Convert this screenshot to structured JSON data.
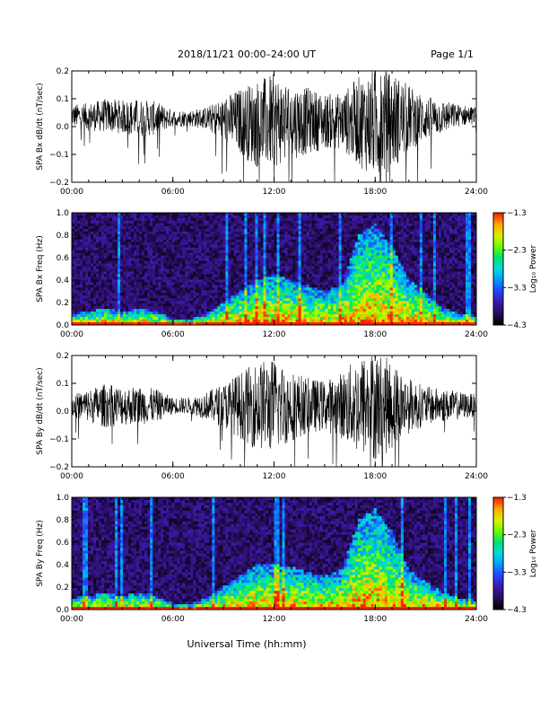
{
  "header": {
    "title": "2018/11/21   00:00–24:00 UT",
    "page": "Page 1/1"
  },
  "footer": {
    "xlabel": "Universal Time (hh:mm)"
  },
  "colors": {
    "trace": "#000000",
    "background": "#ffffff",
    "colormap": [
      "#000000",
      "#2a0d5e",
      "#3a1aa8",
      "#2244ff",
      "#0099ff",
      "#00dddd",
      "#00e070",
      "#66ff00",
      "#ddee00",
      "#ffaa00",
      "#ff2200"
    ]
  },
  "chart_data": [
    {
      "type": "line",
      "ylabel": "SPA Bx dB/dt (nT/sec)",
      "xlim": [
        0,
        24
      ],
      "ylim": [
        -0.2,
        0.2
      ],
      "x_ticks": [
        "00:00",
        "06:00",
        "12:00",
        "18:00",
        "24:00"
      ],
      "y_ticks": [
        "0.2",
        "0.1",
        "0.0",
        "−0.1",
        "−0.2"
      ],
      "series": [
        {
          "envelope_hours": [
            0,
            1,
            2,
            3,
            4,
            5,
            6,
            7,
            8,
            9,
            10,
            11,
            12,
            13,
            14,
            15,
            16,
            17,
            18,
            19,
            20,
            21,
            22,
            23,
            24
          ],
          "center": [
            0.04,
            0.035,
            0.04,
            0.035,
            0.03,
            0.03,
            0.03,
            0.03,
            0.03,
            0.025,
            0.02,
            0.01,
            0.02,
            0.02,
            0.02,
            0.02,
            0.02,
            0.02,
            0.01,
            0.02,
            0.03,
            0.03,
            0.035,
            0.04,
            0.04
          ],
          "amplitude": [
            0.04,
            0.05,
            0.06,
            0.06,
            0.07,
            0.06,
            0.03,
            0.03,
            0.04,
            0.08,
            0.12,
            0.16,
            0.17,
            0.14,
            0.12,
            0.1,
            0.1,
            0.16,
            0.2,
            0.18,
            0.12,
            0.08,
            0.06,
            0.04,
            0.03
          ]
        }
      ]
    },
    {
      "type": "heatmap",
      "ylabel": "SPA Bx Freq (Hz)",
      "colorbar_label": "Log₁₀ Power",
      "xlim": [
        0,
        24
      ],
      "ylim": [
        0.0,
        1.0
      ],
      "x_ticks": [
        "00:00",
        "06:00",
        "12:00",
        "18:00",
        "24:00"
      ],
      "y_ticks": [
        "1.0",
        "0.8",
        "0.6",
        "0.4",
        "0.2",
        "0.0"
      ],
      "colorbar_ticks": [
        "−1.3",
        "−2.3",
        "−3.3",
        "−4.3"
      ],
      "color_range": [
        -4.3,
        -1.3
      ],
      "activity_hours": [
        0,
        1,
        2,
        3,
        4,
        5,
        6,
        7,
        8,
        9,
        10,
        11,
        12,
        13,
        14,
        15,
        16,
        17,
        18,
        19,
        20,
        21,
        22,
        23,
        24
      ],
      "activity_top_freq_hz": [
        0.1,
        0.12,
        0.15,
        0.12,
        0.15,
        0.12,
        0.05,
        0.05,
        0.1,
        0.2,
        0.3,
        0.4,
        0.45,
        0.4,
        0.35,
        0.3,
        0.35,
        0.8,
        0.9,
        0.7,
        0.4,
        0.3,
        0.15,
        0.1,
        0.08
      ]
    },
    {
      "type": "line",
      "ylabel": "SPA By dB/dt (nT/sec)",
      "xlim": [
        0,
        24
      ],
      "ylim": [
        -0.2,
        0.2
      ],
      "x_ticks": [
        "00:00",
        "06:00",
        "12:00",
        "18:00",
        "24:00"
      ],
      "y_ticks": [
        "0.2",
        "0.1",
        "0.0",
        "−0.1",
        "−0.2"
      ],
      "series": [
        {
          "envelope_hours": [
            0,
            1,
            2,
            3,
            4,
            5,
            6,
            7,
            8,
            9,
            10,
            11,
            12,
            13,
            14,
            15,
            16,
            17,
            18,
            19,
            20,
            21,
            22,
            23,
            24
          ],
          "center": [
            0.02,
            0.02,
            0.02,
            0.02,
            0.02,
            0.02,
            0.02,
            0.02,
            0.02,
            0.02,
            0.02,
            0.02,
            0.02,
            0.02,
            0.02,
            0.02,
            0.02,
            0.02,
            0.02,
            0.02,
            0.02,
            0.02,
            0.02,
            0.02,
            0.02
          ],
          "amplitude": [
            0.04,
            0.06,
            0.08,
            0.07,
            0.07,
            0.06,
            0.03,
            0.03,
            0.05,
            0.08,
            0.12,
            0.16,
            0.17,
            0.13,
            0.1,
            0.09,
            0.12,
            0.18,
            0.2,
            0.16,
            0.1,
            0.07,
            0.06,
            0.05,
            0.04
          ]
        }
      ]
    },
    {
      "type": "heatmap",
      "ylabel": "SPA By Freq (Hz)",
      "colorbar_label": "Log₁₀ Power",
      "xlim": [
        0,
        24
      ],
      "ylim": [
        0.0,
        1.0
      ],
      "x_ticks": [
        "00:00",
        "06:00",
        "12:00",
        "18:00",
        "24:00"
      ],
      "y_ticks": [
        "1.0",
        "0.8",
        "0.6",
        "0.4",
        "0.2",
        "0.0"
      ],
      "colorbar_ticks": [
        "−1.3",
        "−2.3",
        "−3.3",
        "−4.3"
      ],
      "color_range": [
        -4.3,
        -1.3
      ],
      "activity_hours": [
        0,
        1,
        2,
        3,
        4,
        5,
        6,
        7,
        8,
        9,
        10,
        11,
        12,
        13,
        14,
        15,
        16,
        17,
        18,
        19,
        20,
        21,
        22,
        23,
        24
      ],
      "activity_top_freq_hz": [
        0.1,
        0.12,
        0.15,
        0.12,
        0.15,
        0.12,
        0.05,
        0.05,
        0.1,
        0.2,
        0.3,
        0.4,
        0.4,
        0.38,
        0.33,
        0.3,
        0.35,
        0.8,
        0.9,
        0.7,
        0.35,
        0.25,
        0.15,
        0.1,
        0.08
      ]
    }
  ]
}
